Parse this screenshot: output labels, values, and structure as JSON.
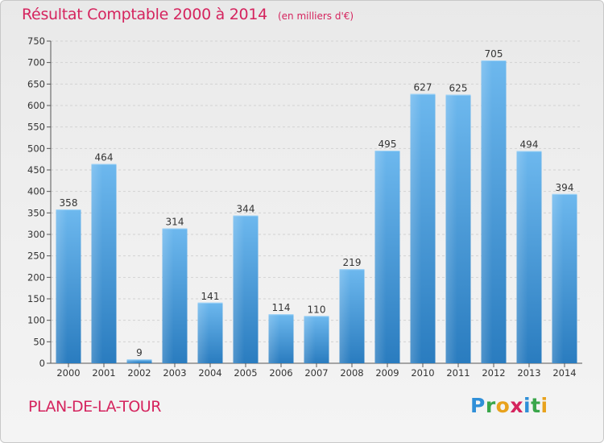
{
  "header": {
    "title": "Résultat Comptable 2000 à 2014",
    "unit": "(en milliers d'€)"
  },
  "footer": {
    "commune": "PLAN-DE-LA-TOUR",
    "logo_text": "Proxiti"
  },
  "colors": {
    "accent": "#d5245e",
    "bar_light": "#6db8ee",
    "bar_dark": "#2a7cbf",
    "logo_letters": [
      "#2f8fd8",
      "#3aa64a",
      "#e8a21c",
      "#d5245e",
      "#2f8fd8",
      "#3aa64a",
      "#e8a21c"
    ]
  },
  "chart_data": {
    "type": "bar",
    "categories": [
      "2000",
      "2001",
      "2002",
      "2003",
      "2004",
      "2005",
      "2006",
      "2007",
      "2008",
      "2009",
      "2010",
      "2011",
      "2012",
      "2013",
      "2014"
    ],
    "values": [
      358,
      464,
      9,
      314,
      141,
      344,
      114,
      110,
      219,
      495,
      627,
      625,
      705,
      494,
      394
    ],
    "ylim": [
      0,
      750
    ],
    "yticks": [
      0,
      50,
      100,
      150,
      200,
      250,
      300,
      350,
      400,
      450,
      500,
      550,
      600,
      650,
      700,
      750
    ],
    "grid": true,
    "data_labels": true
  }
}
